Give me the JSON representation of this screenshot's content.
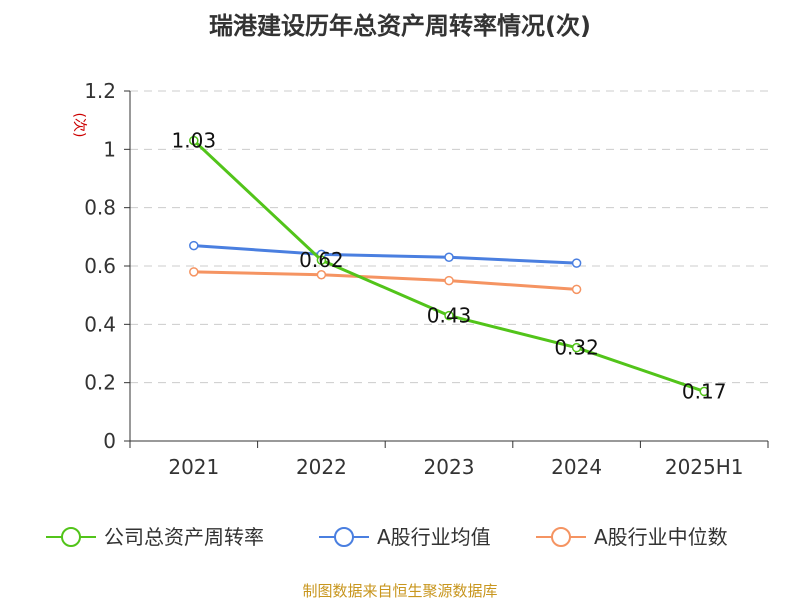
{
  "chart_data": {
    "type": "line",
    "title": "瑞港建设历年总资产周转率情况(次)",
    "ylabel": "(次)",
    "xlabel": "",
    "categories": [
      "2021",
      "2022",
      "2023",
      "2024",
      "2025H1"
    ],
    "ylim": [
      0,
      1.2
    ],
    "yticks": [
      0,
      0.2,
      0.4,
      0.6,
      0.8,
      1,
      1.2
    ],
    "ytick_labels": [
      "0",
      "0.2",
      "0.4",
      "0.6",
      "0.8",
      "1",
      "1.2"
    ],
    "grid": true,
    "legend_position": "bottom",
    "series": [
      {
        "name": "公司总资产周转率",
        "color": "#52c41a",
        "values": [
          1.03,
          0.62,
          0.43,
          0.32,
          0.17
        ],
        "labels": [
          "1.03",
          "0.62",
          "0.43",
          "0.32",
          "0.17"
        ]
      },
      {
        "name": "A股行业均值",
        "color": "#4a7fe0",
        "values": [
          0.67,
          0.64,
          0.63,
          0.61,
          null
        ]
      },
      {
        "name": "A股行业中位数",
        "color": "#f59462",
        "values": [
          0.58,
          0.57,
          0.55,
          0.52,
          null
        ]
      }
    ],
    "source": "制图数据来自恒生聚源数据库"
  }
}
